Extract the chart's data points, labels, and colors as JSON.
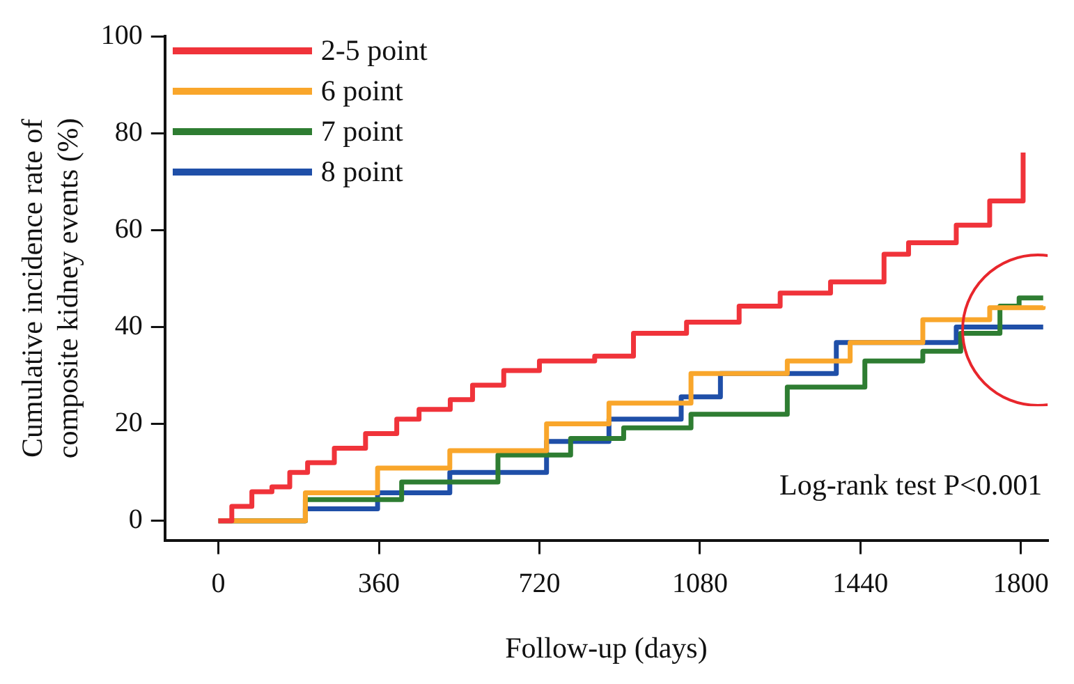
{
  "chart_data": {
    "type": "step",
    "xlabel": "Follow-up (days)",
    "ylabel": "Cumulative incidence rate of composite kidney events (%)",
    "annotations": [
      "Log-rank test P<0.001"
    ],
    "xlim": [
      -120,
      1860
    ],
    "xticks": [
      0,
      360,
      720,
      1080,
      1440,
      1800
    ],
    "ylim": [
      -4,
      100
    ],
    "yticks": [
      0,
      20,
      40,
      60,
      80,
      100
    ],
    "grid": false,
    "legend": "top left",
    "marker": "none",
    "line_style": "solid",
    "series": [
      {
        "name": "2-5 point",
        "color": "#f0333a",
        "x": [
          0,
          30,
          75,
          120,
          160,
          200,
          260,
          330,
          400,
          450,
          520,
          570,
          640,
          720,
          844,
          931,
          1050,
          1168,
          1260,
          1373,
          1493,
          1548,
          1655,
          1730,
          1801,
          1805
        ],
        "values": [
          0,
          3,
          6,
          7,
          10,
          12,
          15,
          18,
          21,
          23,
          25,
          28,
          31,
          33,
          34,
          38.7,
          41,
          44.3,
          47,
          49.3,
          55,
          57.4,
          61,
          66,
          66,
          76
        ]
      },
      {
        "name": "6 point",
        "color": "#f9a62b",
        "x": [
          0,
          195,
          357,
          519,
          736,
          876,
          1060,
          1276,
          1417,
          1580,
          1730,
          1850
        ],
        "values": [
          0,
          5.8,
          10.9,
          14.5,
          20,
          24.3,
          30.4,
          33,
          36.8,
          41.5,
          44,
          44.3
        ]
      },
      {
        "name": "7 point",
        "color": "#2e7d32",
        "x": [
          0,
          195,
          411,
          627,
          790,
          909,
          1060,
          1276,
          1450,
          1580,
          1665,
          1753,
          1796,
          1850
        ],
        "values": [
          0,
          4.4,
          8,
          13.6,
          17,
          19.2,
          22,
          27.6,
          33,
          35,
          38.7,
          44.3,
          46,
          46
        ]
      },
      {
        "name": "8 point",
        "color": "#1f4fa8",
        "x": [
          0,
          195,
          357,
          519,
          736,
          876,
          1038,
          1126,
          1386,
          1590,
          1655,
          1850
        ],
        "values": [
          0,
          2.5,
          5.8,
          10,
          16.4,
          21,
          25.6,
          30.4,
          36.8,
          36.8,
          40,
          40
        ]
      }
    ]
  }
}
